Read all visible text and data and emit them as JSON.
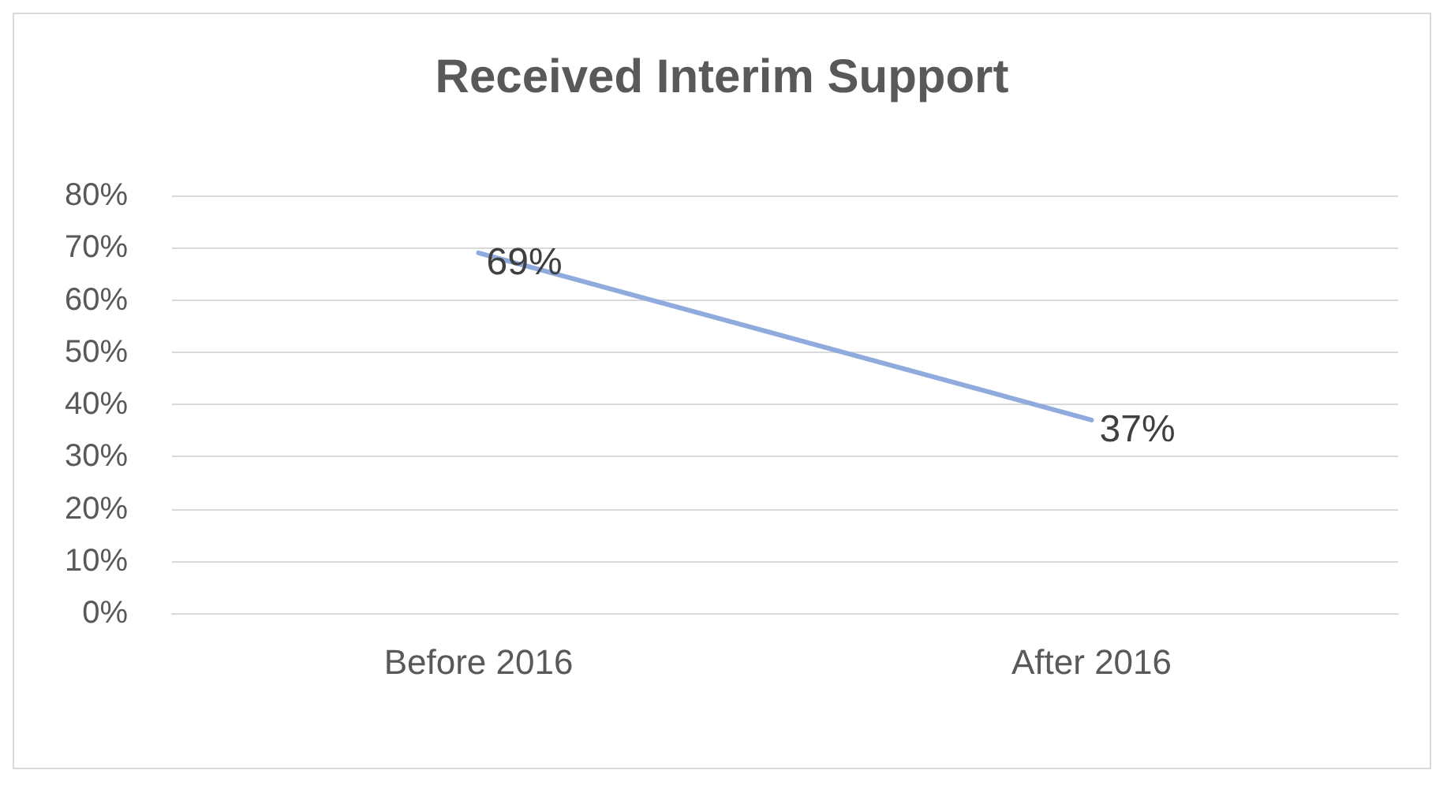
{
  "chart_data": {
    "type": "line",
    "title": "Received Interim Support",
    "categories": [
      "Before 2016",
      "After 2016"
    ],
    "series": [
      {
        "color": "#8faadc",
        "values": [
          69,
          37
        ],
        "value_labels": [
          "69%",
          "37%"
        ]
      }
    ],
    "ylim": [
      0,
      80
    ],
    "yticks": [
      {
        "value": 0,
        "label": "0%"
      },
      {
        "value": 10,
        "label": "10%"
      },
      {
        "value": 20,
        "label": "20%"
      },
      {
        "value": 30,
        "label": "30%"
      },
      {
        "value": 40,
        "label": "40%"
      },
      {
        "value": 50,
        "label": "50%"
      },
      {
        "value": 60,
        "label": "60%"
      },
      {
        "value": 70,
        "label": "70%"
      },
      {
        "value": 80,
        "label": "80%"
      }
    ],
    "grid": "y",
    "marker": "none",
    "line_style": "solid"
  }
}
